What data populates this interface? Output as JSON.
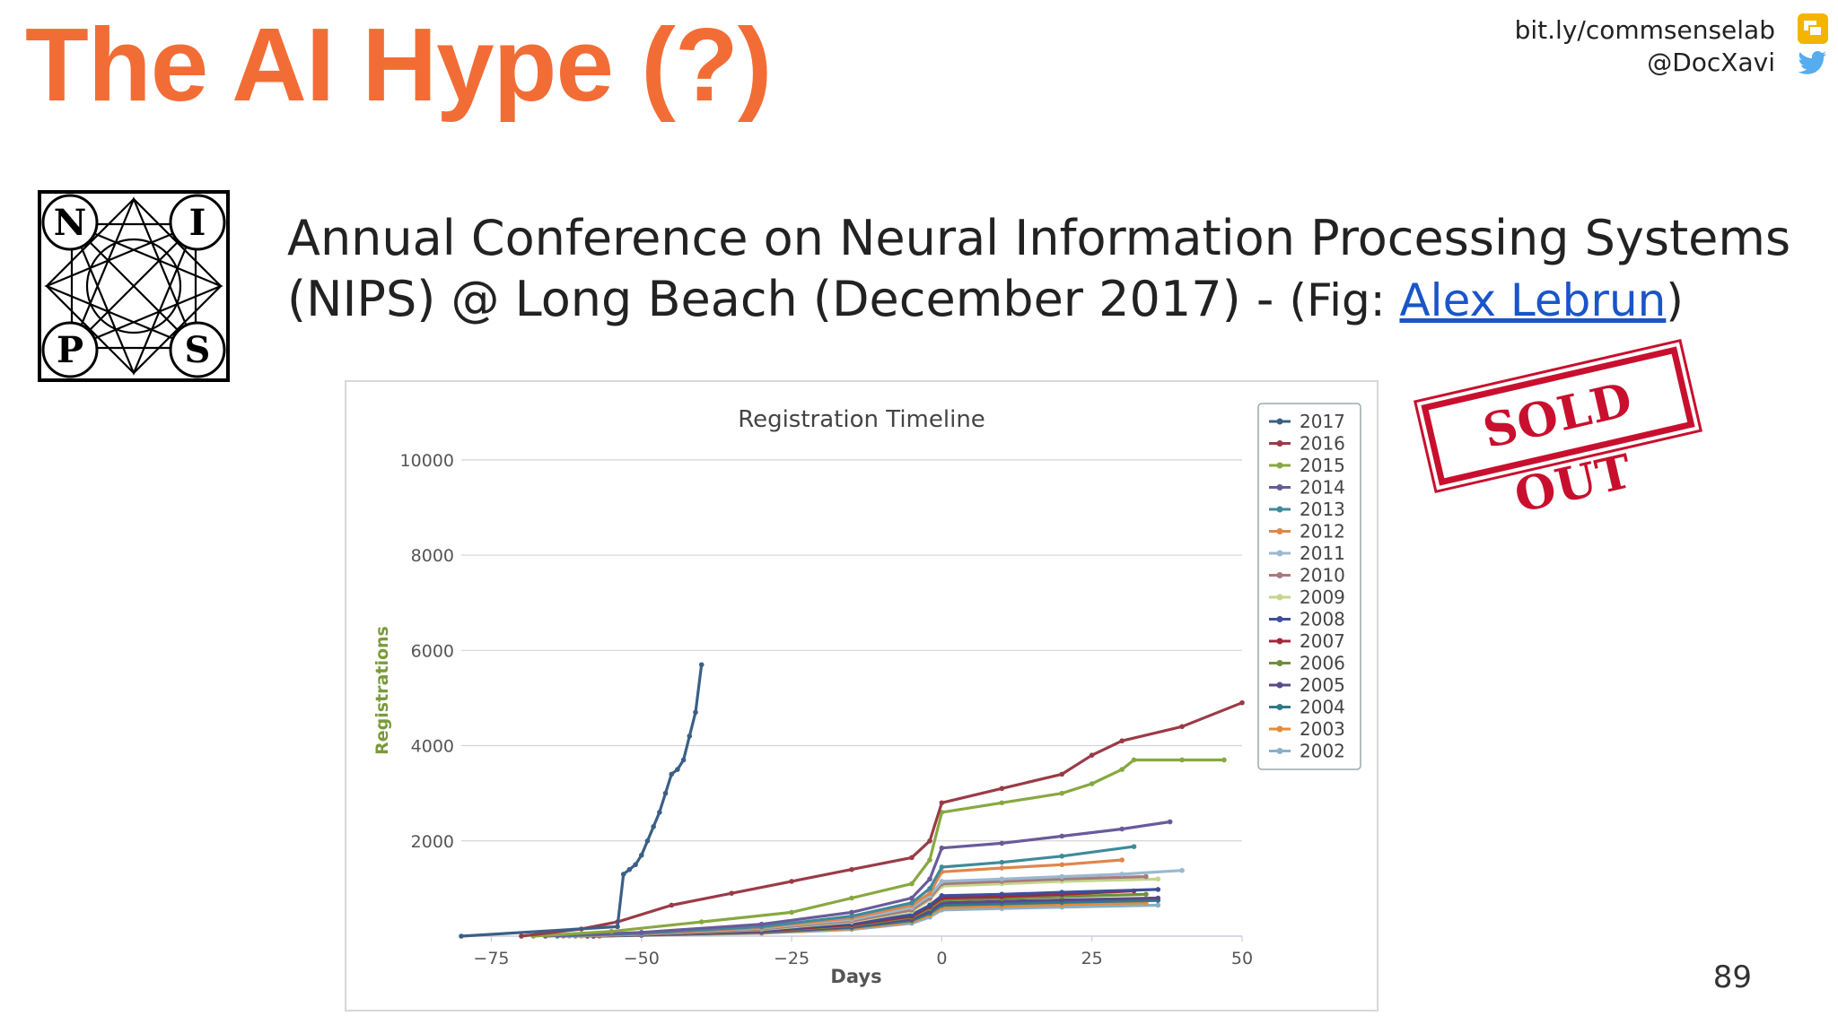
{
  "slide": {
    "title": "The AI Hype (?)",
    "link_handle": "bit.ly/commsenselab",
    "twitter_handle": "@DocXavi",
    "subtitle_line1": "Annual Conference on Neural Information Processing Systems",
    "subtitle_line2": "(NIPS) @ Long Beach (December 2017) - ",
    "fig_prefix": "(Fig: ",
    "fig_link": "Alex Lebrun",
    "fig_suffix": ")",
    "stamp_text": "SOLD OUT",
    "page_number": "89",
    "logo_letters": [
      "N",
      "I",
      "P",
      "S"
    ]
  },
  "colors": {
    "title": "#f26d36",
    "link": "#1a55c8",
    "stamp": "#c8102e",
    "ylabel": "#7a9a3a"
  },
  "icons": [
    "slides-icon",
    "twitter-bird-icon"
  ],
  "chart_data": {
    "type": "line",
    "title": "Registration Timeline",
    "xlabel": "Days",
    "ylabel": "Registrations",
    "xlim": [
      -80,
      50
    ],
    "ylim": [
      0,
      10000
    ],
    "x_ticks": [
      -75,
      -50,
      -25,
      0,
      25,
      50
    ],
    "y_ticks": [
      2000,
      4000,
      6000,
      8000,
      10000
    ],
    "grid": true,
    "legend": "top-right",
    "series": [
      {
        "name": "2017",
        "color": "#3b5f86",
        "x": [
          -80,
          -54,
          -53,
          -52,
          -51,
          -50,
          -49,
          -48,
          -47,
          -46,
          -45,
          -44,
          -43,
          -42,
          -41,
          -40
        ],
        "y": [
          0,
          200,
          1300,
          1400,
          1500,
          1700,
          2000,
          2300,
          2600,
          3000,
          3400,
          3500,
          3700,
          4200,
          4700,
          5700
        ]
      },
      {
        "name": "2016",
        "color": "#9a3b46",
        "x": [
          -70,
          -60,
          -54,
          -45,
          -35,
          -25,
          -15,
          -5,
          -2,
          0,
          10,
          20,
          25,
          30,
          40,
          50
        ],
        "y": [
          0,
          150,
          300,
          650,
          900,
          1150,
          1400,
          1650,
          2000,
          2800,
          3100,
          3400,
          3800,
          4100,
          4400,
          4900
        ]
      },
      {
        "name": "2015",
        "color": "#88a840",
        "x": [
          -68,
          -55,
          -40,
          -25,
          -15,
          -5,
          -2,
          0,
          10,
          20,
          25,
          30,
          32,
          40,
          47
        ],
        "y": [
          0,
          100,
          300,
          500,
          800,
          1100,
          1600,
          2600,
          2800,
          3000,
          3200,
          3500,
          3700,
          3700,
          3700
        ]
      },
      {
        "name": "2014",
        "color": "#6a5a9a",
        "x": [
          -66,
          -50,
          -30,
          -15,
          -5,
          -2,
          0,
          10,
          20,
          30,
          38
        ],
        "y": [
          0,
          80,
          250,
          500,
          800,
          1200,
          1850,
          1950,
          2100,
          2250,
          2400
        ]
      },
      {
        "name": "2013",
        "color": "#3f8a9a",
        "x": [
          -64,
          -50,
          -30,
          -15,
          -5,
          -2,
          0,
          10,
          20,
          32
        ],
        "y": [
          0,
          60,
          200,
          420,
          700,
          1000,
          1450,
          1550,
          1680,
          1880
        ]
      },
      {
        "name": "2012",
        "color": "#e0864a",
        "x": [
          -63,
          -50,
          -30,
          -15,
          -5,
          -2,
          0,
          10,
          20,
          30
        ],
        "y": [
          0,
          50,
          180,
          380,
          650,
          900,
          1350,
          1430,
          1500,
          1600
        ]
      },
      {
        "name": "2011",
        "color": "#9ab8d0",
        "x": [
          -62,
          -50,
          -30,
          -15,
          -5,
          -2,
          0,
          10,
          20,
          30,
          40
        ],
        "y": [
          0,
          50,
          170,
          350,
          600,
          850,
          1150,
          1200,
          1250,
          1300,
          1380
        ]
      },
      {
        "name": "2010",
        "color": "#a97a7a",
        "x": [
          -61,
          -50,
          -30,
          -15,
          -5,
          -2,
          0,
          10,
          20,
          34
        ],
        "y": [
          0,
          40,
          150,
          320,
          550,
          800,
          1100,
          1150,
          1200,
          1250
        ]
      },
      {
        "name": "2009",
        "color": "#c3d68c",
        "x": [
          -60,
          -50,
          -30,
          -15,
          -5,
          -2,
          0,
          10,
          20,
          36
        ],
        "y": [
          0,
          40,
          140,
          300,
          520,
          760,
          1050,
          1100,
          1150,
          1200
        ]
      },
      {
        "name": "2008",
        "color": "#3e4e9a",
        "x": [
          -60,
          -50,
          -30,
          -15,
          -5,
          -2,
          0,
          10,
          20,
          36
        ],
        "y": [
          0,
          30,
          120,
          260,
          450,
          650,
          850,
          880,
          920,
          980
        ]
      },
      {
        "name": "2007",
        "color": "#a1283a",
        "x": [
          -59,
          -50,
          -30,
          -15,
          -5,
          -2,
          0,
          10,
          20,
          32
        ],
        "y": [
          0,
          30,
          110,
          240,
          420,
          620,
          800,
          830,
          880,
          950
        ]
      },
      {
        "name": "2006",
        "color": "#6e8f3a",
        "x": [
          -59,
          -50,
          -30,
          -15,
          -5,
          -2,
          0,
          10,
          20,
          34
        ],
        "y": [
          0,
          30,
          100,
          220,
          400,
          580,
          760,
          790,
          830,
          880
        ]
      },
      {
        "name": "2005",
        "color": "#5a4a8a",
        "x": [
          -58,
          -50,
          -30,
          -15,
          -5,
          -2,
          0,
          10,
          20,
          36
        ],
        "y": [
          0,
          25,
          90,
          200,
          360,
          520,
          700,
          730,
          760,
          800
        ]
      },
      {
        "name": "2004",
        "color": "#2f7a8a",
        "x": [
          -58,
          -50,
          -30,
          -15,
          -5,
          -2,
          0,
          10,
          20,
          36
        ],
        "y": [
          0,
          20,
          80,
          180,
          330,
          480,
          650,
          680,
          710,
          750
        ]
      },
      {
        "name": "2003",
        "color": "#e38b3a",
        "x": [
          -57,
          -50,
          -30,
          -15,
          -5,
          -2,
          0,
          10,
          20,
          34
        ],
        "y": [
          0,
          20,
          70,
          160,
          300,
          440,
          600,
          630,
          660,
          700
        ]
      },
      {
        "name": "2002",
        "color": "#8ab0c8",
        "x": [
          -57,
          -50,
          -30,
          -15,
          -5,
          -2,
          0,
          10,
          20,
          36
        ],
        "y": [
          0,
          15,
          60,
          140,
          270,
          400,
          550,
          580,
          610,
          650
        ]
      }
    ]
  }
}
